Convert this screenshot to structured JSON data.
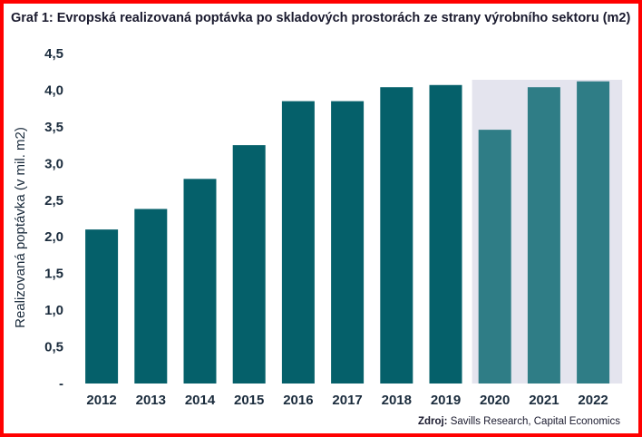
{
  "title": "Graf 1: Evropská realizovaná poptávka po skladových prostorách ze strany výrobního sektoru (m2)",
  "source": {
    "label": "Zdroj:",
    "text": "Savills Research, Capital Economics"
  },
  "colors": {
    "actual": "#05606a",
    "forecast": "#2f7d86",
    "forecast_band": "#e4e4ee",
    "frame": "#ff0000"
  },
  "chart_data": {
    "type": "bar",
    "categories": [
      "2012",
      "2013",
      "2014",
      "2015",
      "2016",
      "2017",
      "2018",
      "2019",
      "2020",
      "2021",
      "2022"
    ],
    "values": [
      2.1,
      2.38,
      2.79,
      3.25,
      3.85,
      3.85,
      4.04,
      4.07,
      3.46,
      4.04,
      4.12
    ],
    "forecast_from_index": 8,
    "ylabel": "Realizovaná poptávka (v mil. m2)",
    "ylim": [
      0,
      4.5
    ],
    "yticks": [
      0,
      0.5,
      1,
      1.5,
      2,
      2.5,
      3,
      3.5,
      4,
      4.5
    ],
    "ytick_labels": [
      "-",
      "0,5",
      "1,0",
      "1,5",
      "2,0",
      "2,5",
      "3,0",
      "3,5",
      "4,0",
      "4,5"
    ],
    "grid": false,
    "legend": "none"
  }
}
